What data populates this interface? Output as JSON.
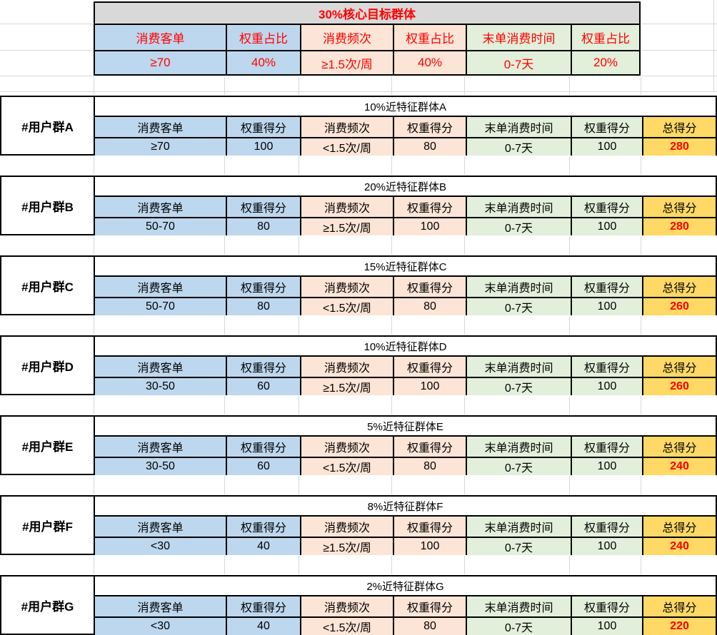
{
  "colors": {
    "blue": "#BDD7EE",
    "peach": "#FCE4D6",
    "green": "#E2EFDA",
    "yellow": "#FFD966",
    "gray": "#D9D9D9",
    "red": "#FF0000",
    "grid": "#D9D9D9",
    "border": "#000000"
  },
  "top_table": {
    "title": "30%核心目标群体",
    "headers": [
      "消费客单",
      "权重占比",
      "消费频次",
      "权重占比",
      "末单消费时间",
      "权重占比"
    ],
    "values": [
      "≥70",
      "40%",
      "≥1.5次/周",
      "40%",
      "0-7天",
      "20%"
    ]
  },
  "group_headers": [
    "消费客单",
    "权重得分",
    "消费频次",
    "权重得分",
    "末单消费时间",
    "权重得分",
    "总得分"
  ],
  "groups": [
    {
      "label": "#用户群A",
      "title": "10%近特征群体A",
      "values": [
        "≥70",
        "100",
        "<1.5次/周",
        "80",
        "0-7天",
        "100"
      ],
      "total": "280"
    },
    {
      "label": "#用户群B",
      "title": "20%近特征群体B",
      "values": [
        "50-70",
        "80",
        "≥1.5次/周",
        "100",
        "0-7天",
        "100"
      ],
      "total": "280"
    },
    {
      "label": "#用户群C",
      "title": "15%近特征群体C",
      "values": [
        "50-70",
        "80",
        "<1.5次/周",
        "80",
        "0-7天",
        "100"
      ],
      "total": "260"
    },
    {
      "label": "#用户群D",
      "title": "10%近特征群体D",
      "values": [
        "30-50",
        "60",
        "≥1.5次/周",
        "100",
        "0-7天",
        "100"
      ],
      "total": "260"
    },
    {
      "label": "#用户群E",
      "title": "5%近特征群体E",
      "values": [
        "30-50",
        "60",
        "<1.5次/周",
        "80",
        "0-7天",
        "100"
      ],
      "total": "240"
    },
    {
      "label": "#用户群F",
      "title": "8%近特征群体F",
      "values": [
        "<30",
        "40",
        "≥1.5次/周",
        "100",
        "0-7天",
        "100"
      ],
      "total": "240"
    },
    {
      "label": "#用户群G",
      "title": "2%近特征群体G",
      "values": [
        "<30",
        "40",
        "<1.5次/周",
        "80",
        "0-7天",
        "100"
      ],
      "total": "220"
    }
  ]
}
